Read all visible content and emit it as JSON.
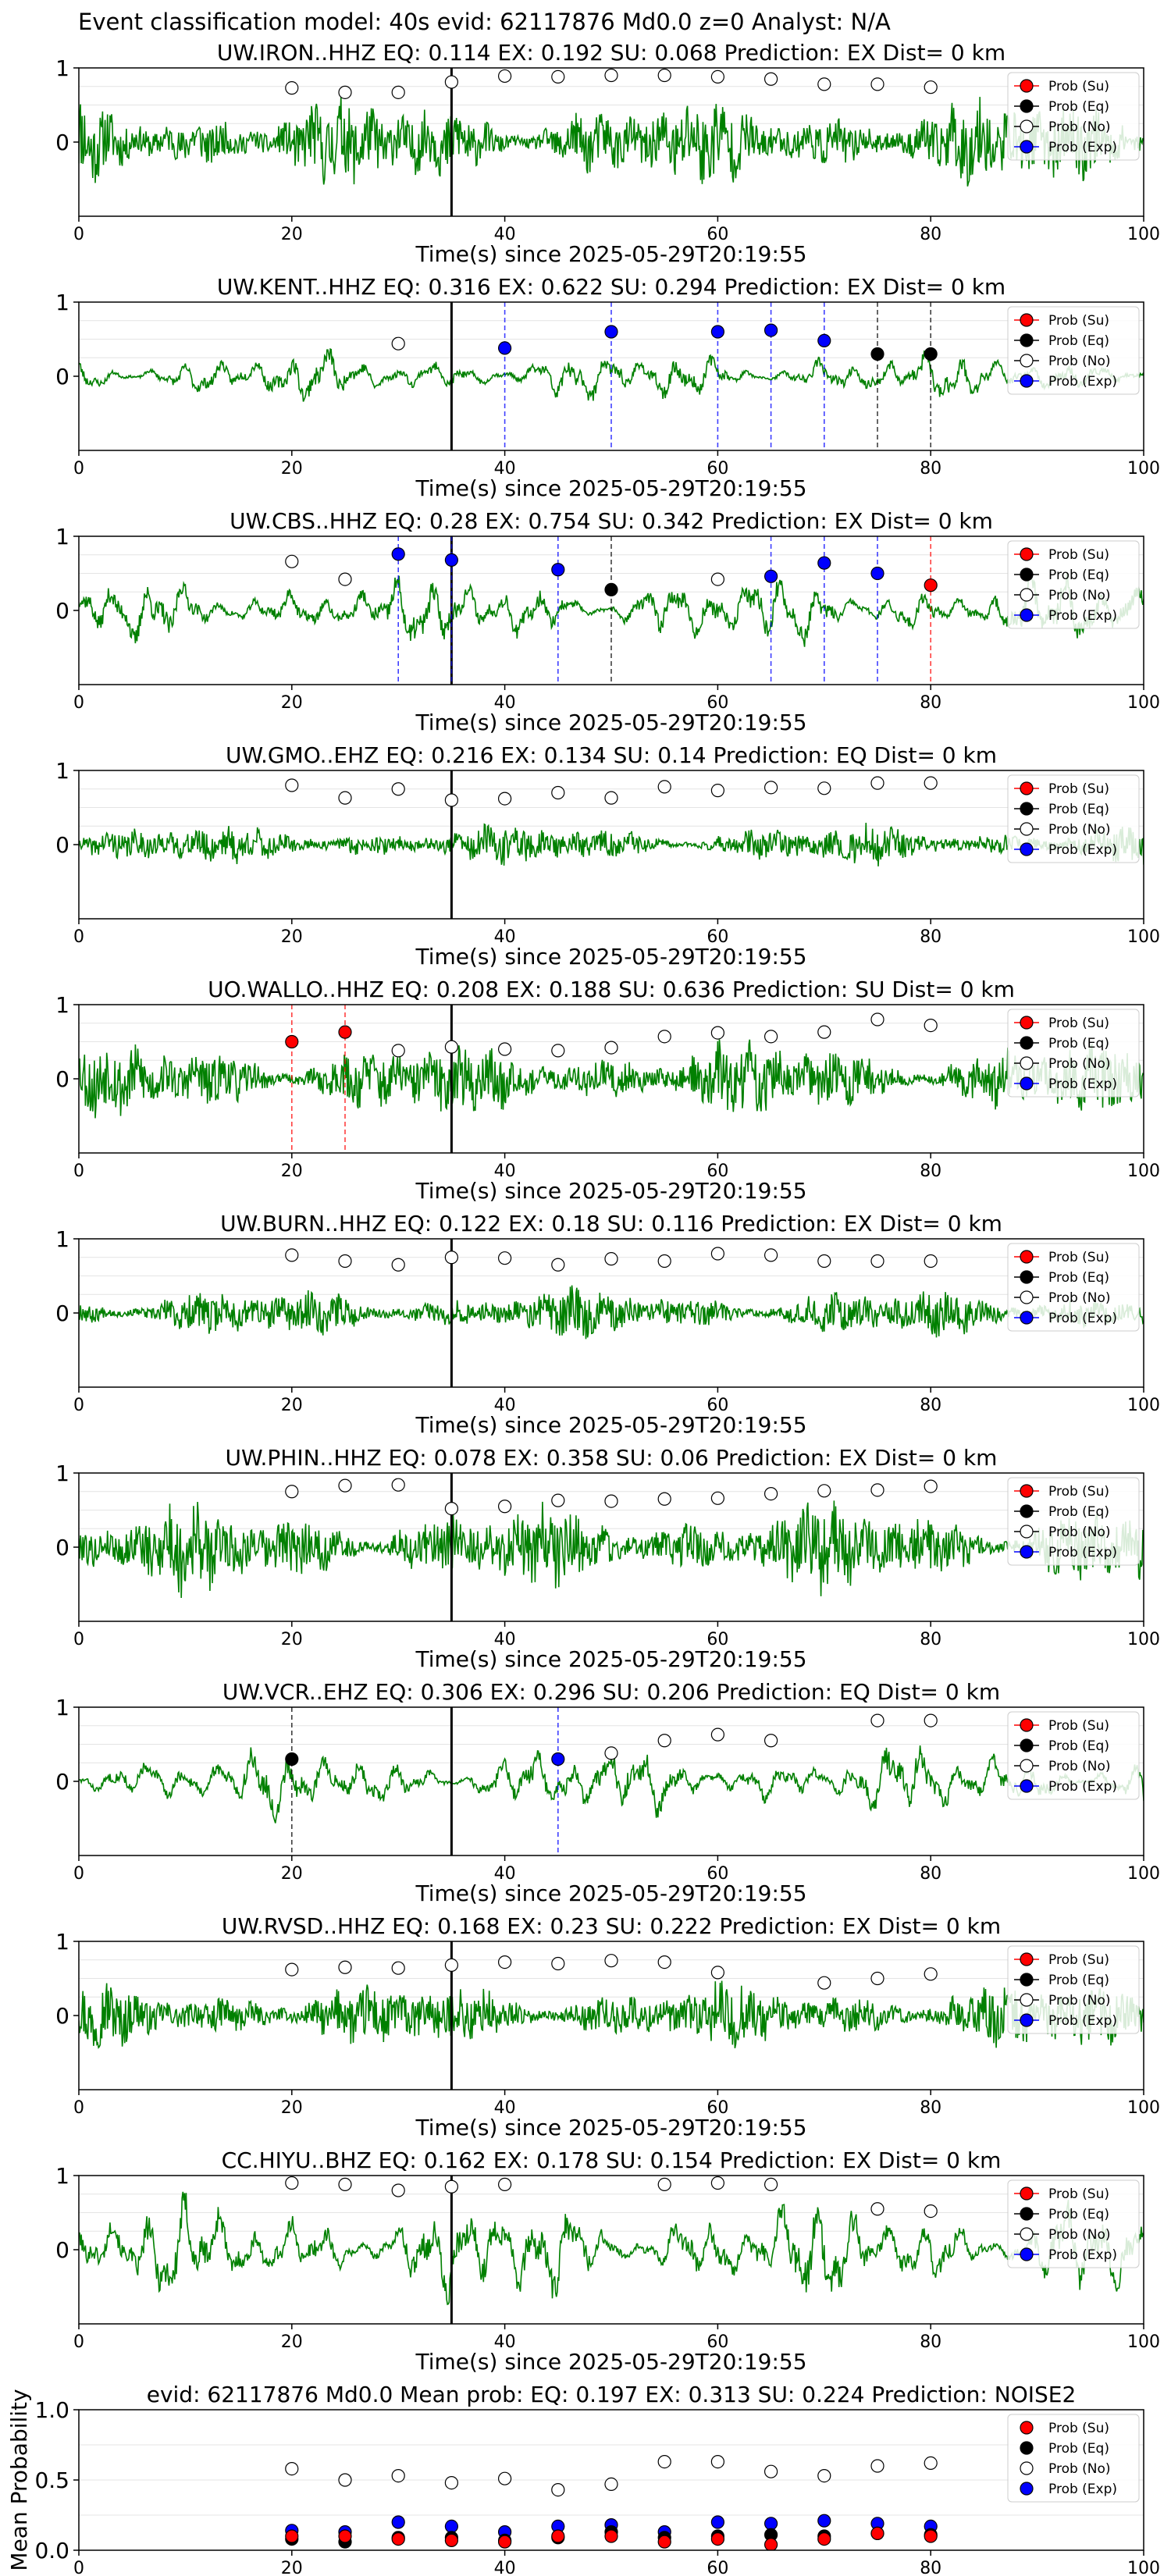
{
  "figure": {
    "title": "Event classification model: 40s evid: 62117876 Md0.0 z=0 Analyst: N/A"
  },
  "colors": {
    "waveform": "#008000",
    "su": "#ff0000",
    "eq": "#000000",
    "no": "#ffffff",
    "exp": "#0000ff",
    "p_marker": "#000000"
  },
  "legend_labels": [
    "Prob (Su)",
    "Prob (Eq)",
    "Prob (No)",
    "Prob (Exp)"
  ],
  "chart_data": [
    {
      "type": "line",
      "title": "UW.IRON..HHZ   EQ: 0.114  EX: 0.192  SU: 0.068   Prediction: EX    Dist= 0 km",
      "xlabel": "Time(s) since 2025-05-29T20:19:55",
      "ylabel": "",
      "xlim": [
        0,
        100
      ],
      "ylim": [
        -1,
        1
      ],
      "xticks": [
        "0",
        "20",
        "40",
        "60",
        "80",
        "100"
      ],
      "yticks": [
        "0",
        "1"
      ],
      "p_arrival": 35,
      "wave_amp": 0.4,
      "wave_style": "noisy",
      "seed": 11,
      "legend": "upper right",
      "points": {
        "su": [],
        "eq": [],
        "exp": [],
        "no": [
          [
            20,
            0.73
          ],
          [
            25,
            0.67
          ],
          [
            30,
            0.67
          ],
          [
            35,
            0.81
          ],
          [
            40,
            0.89
          ],
          [
            45,
            0.88
          ],
          [
            50,
            0.9
          ],
          [
            55,
            0.9
          ],
          [
            60,
            0.88
          ],
          [
            65,
            0.85
          ],
          [
            70,
            0.78
          ],
          [
            75,
            0.78
          ],
          [
            80,
            0.74
          ]
        ]
      }
    },
    {
      "type": "line",
      "title": "UW.KENT..HHZ   EQ: 0.316  EX: 0.622  SU: 0.294   Prediction: EX    Dist= 0 km",
      "xlabel": "Time(s) since 2025-05-29T20:19:55",
      "ylabel": "",
      "xlim": [
        0,
        100
      ],
      "ylim": [
        -1,
        1
      ],
      "xticks": [
        "0",
        "20",
        "40",
        "60",
        "80",
        "100"
      ],
      "yticks": [
        "0",
        "1"
      ],
      "p_arrival": 35,
      "wave_amp": 0.25,
      "wave_style": "smooth",
      "seed": 23,
      "legend": "upper right",
      "points": {
        "su": [],
        "eq": [
          [
            75,
            0.3
          ],
          [
            80,
            0.3
          ]
        ],
        "exp": [
          [
            40,
            0.38
          ],
          [
            50,
            0.6
          ],
          [
            60,
            0.6
          ],
          [
            65,
            0.62
          ],
          [
            70,
            0.48
          ]
        ],
        "no": [
          [
            30,
            0.44
          ]
        ]
      }
    },
    {
      "type": "line",
      "title": "UW.CBS..HHZ   EQ: 0.28   EX: 0.754   SU: 0.342   Prediction: EX    Dist= 0 km",
      "xlabel": "Time(s) since 2025-05-29T20:19:55",
      "ylabel": "",
      "xlim": [
        0,
        100
      ],
      "ylim": [
        -1,
        1
      ],
      "xticks": [
        "0",
        "20",
        "40",
        "60",
        "80",
        "100"
      ],
      "yticks": [
        "0",
        "1"
      ],
      "p_arrival": 35,
      "wave_amp": 0.35,
      "wave_style": "smooth",
      "seed": 37,
      "legend": "upper right",
      "points": {
        "su": [
          [
            80,
            0.34
          ]
        ],
        "eq": [
          [
            50,
            0.28
          ]
        ],
        "exp": [
          [
            30,
            0.76
          ],
          [
            35,
            0.68
          ],
          [
            45,
            0.55
          ],
          [
            65,
            0.46
          ],
          [
            70,
            0.64
          ],
          [
            75,
            0.5
          ]
        ],
        "no": [
          [
            20,
            0.66
          ],
          [
            25,
            0.42
          ],
          [
            60,
            0.42
          ]
        ]
      }
    },
    {
      "type": "line",
      "title": "UW.GMO..EHZ   EQ: 0.216   EX: 0.134   SU: 0.14   Prediction: EQ    Dist= 0 km",
      "xlabel": "Time(s) since 2025-05-29T20:19:55",
      "ylabel": "",
      "xlim": [
        0,
        100
      ],
      "ylim": [
        -1,
        1
      ],
      "xticks": [
        "0",
        "20",
        "40",
        "60",
        "80",
        "100"
      ],
      "yticks": [
        "0",
        "1"
      ],
      "p_arrival": 35,
      "wave_amp": 0.18,
      "wave_style": "noisy",
      "seed": 41,
      "legend": "upper right",
      "points": {
        "su": [],
        "eq": [],
        "exp": [],
        "no": [
          [
            20,
            0.8
          ],
          [
            25,
            0.63
          ],
          [
            30,
            0.75
          ],
          [
            35,
            0.6
          ],
          [
            40,
            0.62
          ],
          [
            45,
            0.7
          ],
          [
            50,
            0.63
          ],
          [
            55,
            0.78
          ],
          [
            60,
            0.73
          ],
          [
            65,
            0.77
          ],
          [
            70,
            0.76
          ],
          [
            75,
            0.83
          ],
          [
            80,
            0.83
          ]
        ]
      }
    },
    {
      "type": "line",
      "title": "UO.WALLO..HHZ   EQ: 0.208   EX: 0.188   SU: 0.636   Prediction: SU    Dist= 0 km",
      "xlabel": "Time(s) since 2025-05-29T20:19:55",
      "ylabel": "",
      "xlim": [
        0,
        100
      ],
      "ylim": [
        -1,
        1
      ],
      "xticks": [
        "0",
        "20",
        "40",
        "60",
        "80",
        "100"
      ],
      "yticks": [
        "0",
        "1"
      ],
      "p_arrival": 35,
      "wave_amp": 0.35,
      "wave_style": "noisy",
      "seed": 53,
      "legend": "upper right",
      "points": {
        "su": [
          [
            20,
            0.5
          ],
          [
            25,
            0.63
          ]
        ],
        "eq": [],
        "exp": [],
        "no": [
          [
            30,
            0.38
          ],
          [
            35,
            0.43
          ],
          [
            40,
            0.4
          ],
          [
            45,
            0.38
          ],
          [
            50,
            0.42
          ],
          [
            55,
            0.57
          ],
          [
            60,
            0.62
          ],
          [
            65,
            0.57
          ],
          [
            70,
            0.63
          ],
          [
            75,
            0.8
          ],
          [
            80,
            0.72
          ]
        ]
      }
    },
    {
      "type": "line",
      "title": "UW.BURN..HHZ   EQ: 0.122   EX: 0.18   SU: 0.116   Prediction: EX    Dist= 0 km",
      "xlabel": "Time(s) since 2025-05-29T20:19:55",
      "ylabel": "",
      "xlim": [
        0,
        100
      ],
      "ylim": [
        -1,
        1
      ],
      "xticks": [
        "0",
        "20",
        "40",
        "60",
        "80",
        "100"
      ],
      "yticks": [
        "0",
        "1"
      ],
      "p_arrival": 35,
      "wave_amp": 0.22,
      "wave_style": "noisy",
      "seed": 67,
      "legend": "upper right",
      "points": {
        "su": [],
        "eq": [],
        "exp": [],
        "no": [
          [
            20,
            0.78
          ],
          [
            25,
            0.7
          ],
          [
            30,
            0.65
          ],
          [
            35,
            0.75
          ],
          [
            40,
            0.74
          ],
          [
            45,
            0.65
          ],
          [
            50,
            0.73
          ],
          [
            55,
            0.7
          ],
          [
            60,
            0.8
          ],
          [
            65,
            0.78
          ],
          [
            70,
            0.7
          ],
          [
            75,
            0.7
          ],
          [
            80,
            0.7
          ]
        ]
      }
    },
    {
      "type": "line",
      "title": "UW.PHIN..HHZ   EQ: 0.078   EX: 0.358   SU: 0.06   Prediction: EX    Dist= 0 km",
      "xlabel": "Time(s) since 2025-05-29T20:19:55",
      "ylabel": "",
      "xlim": [
        0,
        100
      ],
      "ylim": [
        -1,
        1
      ],
      "xticks": [
        "0",
        "20",
        "40",
        "60",
        "80",
        "100"
      ],
      "yticks": [
        "0",
        "1"
      ],
      "p_arrival": 35,
      "wave_amp": 0.4,
      "wave_style": "noisy",
      "seed": 79,
      "legend": "upper right",
      "points": {
        "su": [],
        "eq": [],
        "exp": [],
        "no": [
          [
            20,
            0.75
          ],
          [
            25,
            0.83
          ],
          [
            30,
            0.84
          ],
          [
            35,
            0.52
          ],
          [
            40,
            0.55
          ],
          [
            45,
            0.63
          ],
          [
            50,
            0.62
          ],
          [
            55,
            0.65
          ],
          [
            60,
            0.66
          ],
          [
            65,
            0.72
          ],
          [
            70,
            0.76
          ],
          [
            75,
            0.77
          ],
          [
            80,
            0.82
          ]
        ]
      }
    },
    {
      "type": "line",
      "title": "UW.VCR..EHZ   EQ: 0.306   EX: 0.296   SU: 0.206   Prediction: EQ    Dist= 0 km",
      "xlabel": "Time(s) since 2025-05-29T20:19:55",
      "ylabel": "",
      "xlim": [
        0,
        100
      ],
      "ylim": [
        -1,
        1
      ],
      "xticks": [
        "0",
        "20",
        "40",
        "60",
        "80",
        "100"
      ],
      "yticks": [
        "0",
        "1"
      ],
      "p_arrival": 35,
      "wave_amp": 0.35,
      "wave_style": "smooth",
      "seed": 83,
      "legend": "upper right",
      "points": {
        "su": [],
        "eq": [
          [
            20,
            0.3
          ]
        ],
        "exp": [
          [
            45,
            0.3
          ]
        ],
        "no": [
          [
            50,
            0.38
          ],
          [
            55,
            0.55
          ],
          [
            60,
            0.63
          ],
          [
            65,
            0.55
          ],
          [
            75,
            0.82
          ],
          [
            80,
            0.82
          ]
        ]
      }
    },
    {
      "type": "line",
      "title": "UW.RVSD..HHZ   EQ: 0.168   EX: 0.23   SU: 0.222   Prediction: EX    Dist= 0 km",
      "xlabel": "Time(s) since 2025-05-29T20:19:55",
      "ylabel": "",
      "xlim": [
        0,
        100
      ],
      "ylim": [
        -1,
        1
      ],
      "xticks": [
        "0",
        "20",
        "40",
        "60",
        "80",
        "100"
      ],
      "yticks": [
        "0",
        "1"
      ],
      "p_arrival": 35,
      "wave_amp": 0.3,
      "wave_style": "noisy",
      "seed": 97,
      "legend": "upper right",
      "points": {
        "su": [],
        "eq": [],
        "exp": [],
        "no": [
          [
            20,
            0.62
          ],
          [
            25,
            0.65
          ],
          [
            30,
            0.64
          ],
          [
            35,
            0.68
          ],
          [
            40,
            0.72
          ],
          [
            45,
            0.7
          ],
          [
            50,
            0.74
          ],
          [
            55,
            0.72
          ],
          [
            60,
            0.58
          ],
          [
            70,
            0.44
          ],
          [
            75,
            0.5
          ],
          [
            80,
            0.56
          ]
        ]
      }
    },
    {
      "type": "line",
      "title": "CC.HIYU..BHZ   EQ: 0.162   EX: 0.178   SU: 0.154   Prediction: EX    Dist= 0 km",
      "xlabel": "Time(s) since 2025-05-29T20:19:55",
      "ylabel": "",
      "xlim": [
        0,
        100
      ],
      "ylim": [
        -1,
        1
      ],
      "xticks": [
        "0",
        "20",
        "40",
        "60",
        "80",
        "100"
      ],
      "yticks": [
        "0",
        "1"
      ],
      "p_arrival": 35,
      "wave_amp": 0.5,
      "wave_style": "smooth",
      "seed": 101,
      "legend": "upper right",
      "points": {
        "su": [],
        "eq": [],
        "exp": [],
        "no": [
          [
            20,
            0.9
          ],
          [
            25,
            0.88
          ],
          [
            30,
            0.8
          ],
          [
            35,
            0.85
          ],
          [
            40,
            0.88
          ],
          [
            55,
            0.88
          ],
          [
            60,
            0.9
          ],
          [
            65,
            0.88
          ],
          [
            75,
            0.55
          ],
          [
            80,
            0.52
          ]
        ]
      }
    },
    {
      "type": "scatter",
      "title": "evid: 62117876   Md0.0    Mean prob:    EQ: 0.197   EX: 0.313   SU: 0.224    Prediction: NOISE2",
      "xlabel": "",
      "ylabel": "Mean Probability",
      "xlim": [
        0,
        100
      ],
      "ylim": [
        0,
        1
      ],
      "xticks": [
        "0",
        "20",
        "40",
        "60",
        "80",
        "100"
      ],
      "yticks": [
        "0.0",
        "0.5",
        "1.0"
      ],
      "legend": "upper right",
      "points": {
        "no": [
          [
            20,
            0.58
          ],
          [
            25,
            0.5
          ],
          [
            30,
            0.53
          ],
          [
            35,
            0.48
          ],
          [
            40,
            0.51
          ],
          [
            45,
            0.43
          ],
          [
            50,
            0.47
          ],
          [
            55,
            0.63
          ],
          [
            60,
            0.63
          ],
          [
            65,
            0.56
          ],
          [
            70,
            0.53
          ],
          [
            75,
            0.6
          ],
          [
            80,
            0.62
          ]
        ],
        "exp": [
          [
            20,
            0.14
          ],
          [
            25,
            0.13
          ],
          [
            30,
            0.2
          ],
          [
            35,
            0.17
          ],
          [
            40,
            0.13
          ],
          [
            45,
            0.17
          ],
          [
            50,
            0.18
          ],
          [
            55,
            0.13
          ],
          [
            60,
            0.2
          ],
          [
            65,
            0.19
          ],
          [
            70,
            0.21
          ],
          [
            75,
            0.19
          ],
          [
            80,
            0.17
          ]
        ],
        "eq": [
          [
            20,
            0.08
          ],
          [
            25,
            0.06
          ],
          [
            30,
            0.09
          ],
          [
            35,
            0.09
          ],
          [
            40,
            0.07
          ],
          [
            45,
            0.09
          ],
          [
            50,
            0.13
          ],
          [
            55,
            0.09
          ],
          [
            60,
            0.1
          ],
          [
            65,
            0.11
          ],
          [
            70,
            0.1
          ],
          [
            75,
            0.12
          ],
          [
            80,
            0.11
          ]
        ],
        "su": [
          [
            20,
            0.1
          ],
          [
            25,
            0.1
          ],
          [
            30,
            0.08
          ],
          [
            35,
            0.07
          ],
          [
            40,
            0.06
          ],
          [
            45,
            0.1
          ],
          [
            50,
            0.1
          ],
          [
            55,
            0.06
          ],
          [
            60,
            0.08
          ],
          [
            65,
            0.04
          ],
          [
            70,
            0.08
          ],
          [
            75,
            0.12
          ],
          [
            80,
            0.1
          ]
        ]
      }
    }
  ]
}
